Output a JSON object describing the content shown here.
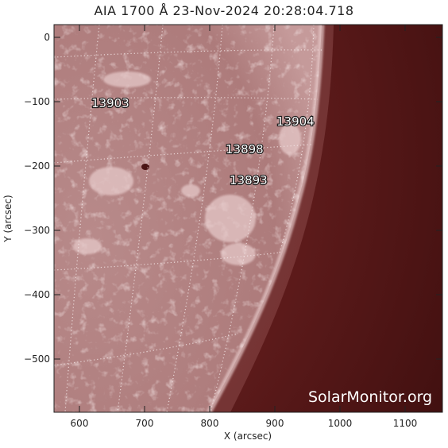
{
  "image": {
    "title": "AIA 1700 Å 23-Nov-2024 20:28:04.718",
    "x_axis_label": "X (arcsec)",
    "y_axis_label": "Y (arcsec)",
    "x_ticks": [
      "600",
      "700",
      "800",
      "900",
      "1000",
      "1100"
    ],
    "y_ticks": [
      "0",
      "−100",
      "−200",
      "−300",
      "−400",
      "−500"
    ],
    "regions": [
      {
        "id": "13903",
        "label": "13903"
      },
      {
        "id": "13904",
        "label": "13904"
      },
      {
        "id": "13898",
        "label": "13898"
      },
      {
        "id": "13893",
        "label": "13893"
      }
    ],
    "watermark": "SolarMonitor.org",
    "colors": {
      "disk": "#b07e7e",
      "disk_bright": "#d9b4b4",
      "limb": "#e8cfcf",
      "off_disk": "#5e1b1b",
      "off_disk_dark": "#3f0f0f",
      "grid": "#f2e4e4"
    }
  }
}
